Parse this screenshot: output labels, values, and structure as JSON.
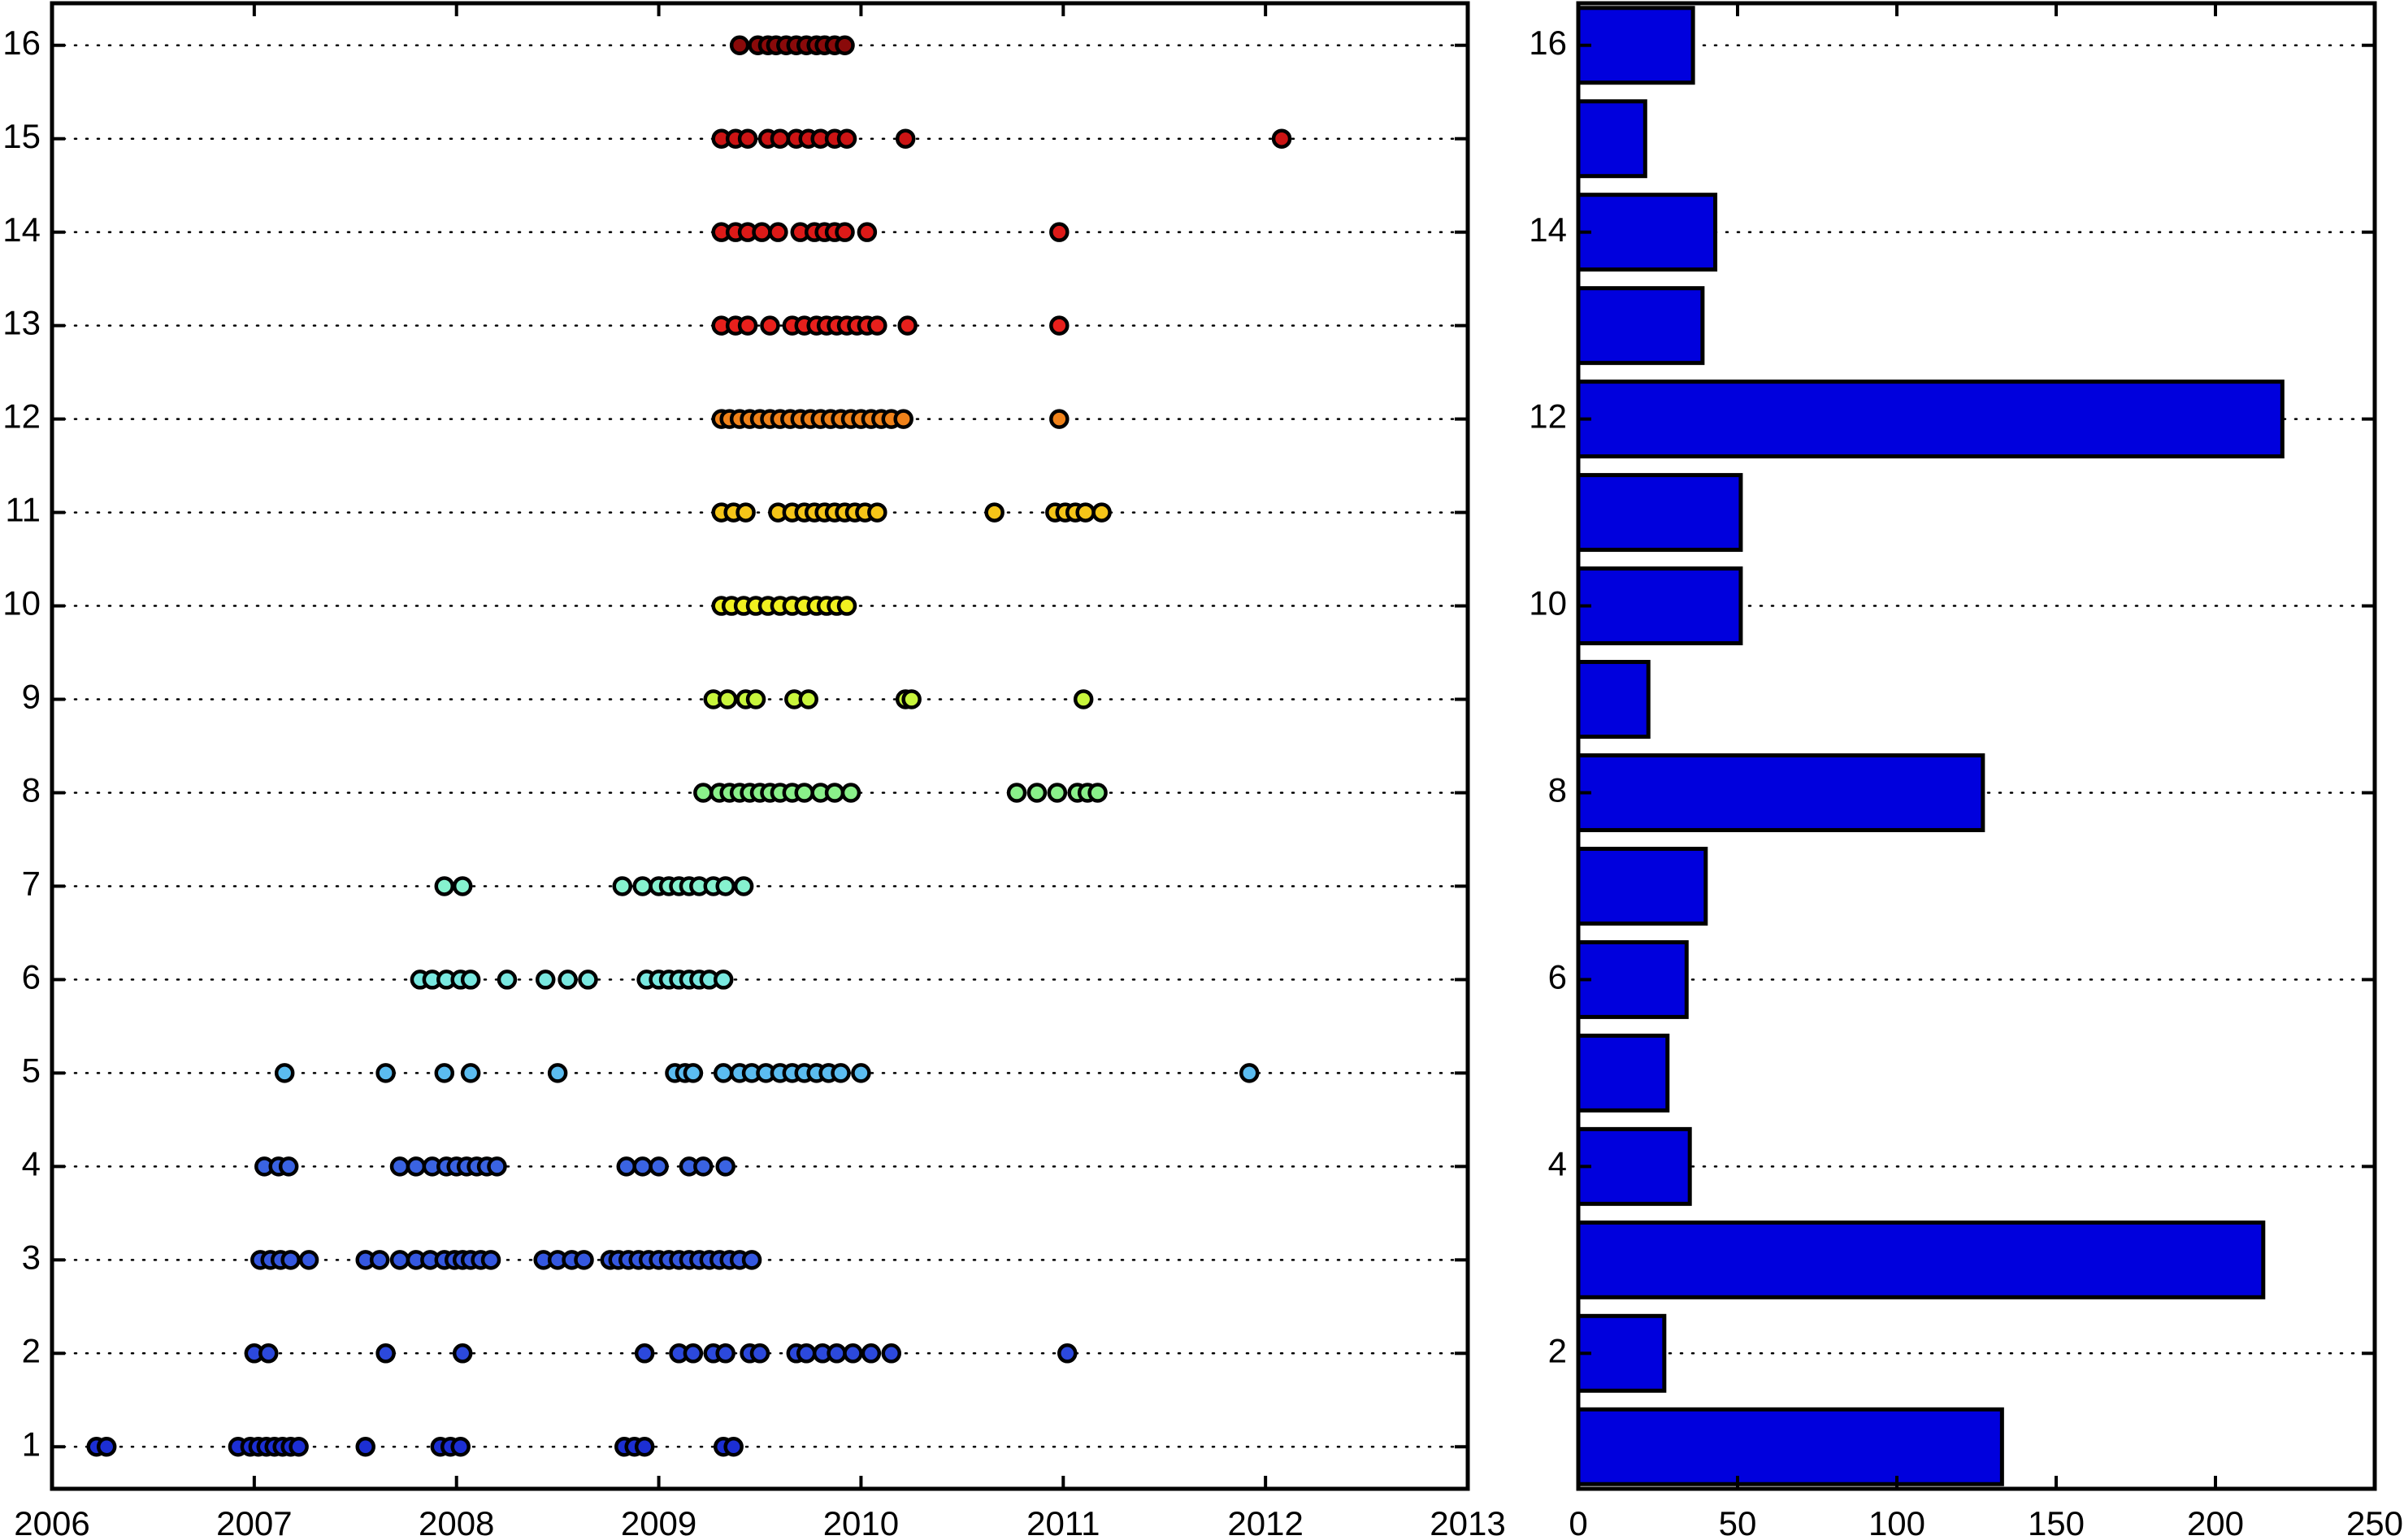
{
  "colors": {
    "bar_fill": "#0000dd",
    "edge": "#000000",
    "grid": "#000000",
    "row_colors": {
      "1": "#1c2fd4",
      "2": "#2c49dc",
      "3": "#3558e0",
      "4": "#3a63e2",
      "5": "#5bbcf0",
      "6": "#79e8e0",
      "7": "#86f2cf",
      "8": "#8af08a",
      "9": "#c8f53c",
      "10": "#f0f020",
      "11": "#f5c518",
      "12": "#f0821a",
      "13": "#e8201c",
      "14": "#dd1a18",
      "15": "#cc1414",
      "16": "#8a0a0a"
    }
  },
  "chart_data": [
    {
      "type": "scatter",
      "title": "",
      "xlabel": "",
      "ylabel": "",
      "xlim": [
        2006,
        2013
      ],
      "ylim": [
        0.55,
        16.45
      ],
      "xticks": [
        2006,
        2007,
        2008,
        2009,
        2010,
        2011,
        2012,
        2013
      ],
      "yticks": [
        1,
        2,
        3,
        4,
        5,
        6,
        7,
        8,
        9,
        10,
        11,
        12,
        13,
        14,
        15,
        16
      ],
      "grid": "horizontal dotted",
      "series": [
        {
          "row": 1,
          "x": [
            2006.22,
            2006.27,
            2006.92,
            2006.98,
            2007.02,
            2007.06,
            2007.1,
            2007.14,
            2007.18,
            2007.22,
            2007.55,
            2007.92,
            2007.97,
            2008.02,
            2008.83,
            2008.88,
            2008.93,
            2009.32,
            2009.37
          ]
        },
        {
          "row": 2,
          "x": [
            2007.0,
            2007.07,
            2007.65,
            2008.03,
            2008.93,
            2009.1,
            2009.17,
            2009.27,
            2009.33,
            2009.45,
            2009.5,
            2009.68,
            2009.73,
            2009.81,
            2009.88,
            2009.96,
            2010.05,
            2010.15,
            2011.02
          ]
        },
        {
          "row": 3,
          "x": [
            2007.03,
            2007.08,
            2007.13,
            2007.18,
            2007.27,
            2007.55,
            2007.62,
            2007.72,
            2007.8,
            2007.87,
            2007.94,
            2007.99,
            2008.03,
            2008.07,
            2008.12,
            2008.17,
            2008.43,
            2008.5,
            2008.57,
            2008.63,
            2008.76,
            2008.8,
            2008.85,
            2008.9,
            2008.95,
            2009.0,
            2009.05,
            2009.1,
            2009.15,
            2009.2,
            2009.25,
            2009.3,
            2009.35,
            2009.4,
            2009.46
          ]
        },
        {
          "row": 4,
          "x": [
            2007.05,
            2007.12,
            2007.17,
            2007.72,
            2007.8,
            2007.88,
            2007.95,
            2008.0,
            2008.05,
            2008.1,
            2008.15,
            2008.2,
            2008.84,
            2008.92,
            2009.0,
            2009.15,
            2009.22,
            2009.33
          ]
        },
        {
          "row": 5,
          "x": [
            2007.15,
            2007.65,
            2007.94,
            2008.07,
            2008.5,
            2009.08,
            2009.13,
            2009.17,
            2009.32,
            2009.4,
            2009.46,
            2009.53,
            2009.6,
            2009.66,
            2009.72,
            2009.78,
            2009.84,
            2009.9,
            2010.0,
            2011.92
          ]
        },
        {
          "row": 6,
          "x": [
            2007.82,
            2007.88,
            2007.95,
            2008.02,
            2008.07,
            2008.25,
            2008.44,
            2008.55,
            2008.65,
            2008.94,
            2009.0,
            2009.05,
            2009.1,
            2009.15,
            2009.2,
            2009.25,
            2009.32
          ]
        },
        {
          "row": 7,
          "x": [
            2007.94,
            2008.03,
            2008.82,
            2008.92,
            2009.0,
            2009.05,
            2009.1,
            2009.15,
            2009.2,
            2009.27,
            2009.33,
            2009.42
          ]
        },
        {
          "row": 8,
          "x": [
            2009.22,
            2009.3,
            2009.35,
            2009.4,
            2009.45,
            2009.5,
            2009.55,
            2009.6,
            2009.66,
            2009.72,
            2009.8,
            2009.87,
            2009.95,
            2010.77,
            2010.87,
            2010.97,
            2011.07,
            2011.12,
            2011.17
          ]
        },
        {
          "row": 9,
          "x": [
            2009.27,
            2009.34,
            2009.43,
            2009.48,
            2009.67,
            2009.74,
            2010.22,
            2010.25,
            2011.1
          ]
        },
        {
          "row": 10,
          "x": [
            2009.31,
            2009.36,
            2009.42,
            2009.48,
            2009.54,
            2009.6,
            2009.66,
            2009.72,
            2009.78,
            2009.83,
            2009.88,
            2009.93
          ]
        },
        {
          "row": 11,
          "x": [
            2009.31,
            2009.37,
            2009.43,
            2009.59,
            2009.66,
            2009.72,
            2009.77,
            2009.82,
            2009.87,
            2009.92,
            2009.97,
            2010.02,
            2010.08,
            2010.66,
            2010.96,
            2011.01,
            2011.06,
            2011.11,
            2011.19
          ]
        },
        {
          "row": 12,
          "x": [
            2009.31,
            2009.35,
            2009.4,
            2009.45,
            2009.5,
            2009.55,
            2009.6,
            2009.65,
            2009.7,
            2009.75,
            2009.8,
            2009.85,
            2009.9,
            2009.95,
            2010.0,
            2010.05,
            2010.1,
            2010.15,
            2010.21,
            2010.98
          ]
        },
        {
          "row": 13,
          "x": [
            2009.31,
            2009.38,
            2009.44,
            2009.55,
            2009.66,
            2009.72,
            2009.78,
            2009.83,
            2009.88,
            2009.93,
            2009.98,
            2010.03,
            2010.08,
            2010.23,
            2010.98
          ]
        },
        {
          "row": 14,
          "x": [
            2009.31,
            2009.38,
            2009.44,
            2009.51,
            2009.59,
            2009.7,
            2009.77,
            2009.82,
            2009.87,
            2009.92,
            2010.03,
            2010.98
          ]
        },
        {
          "row": 15,
          "x": [
            2009.31,
            2009.38,
            2009.44,
            2009.54,
            2009.6,
            2009.68,
            2009.74,
            2009.8,
            2009.87,
            2009.93,
            2010.22,
            2012.08
          ]
        },
        {
          "row": 16,
          "x": [
            2009.4,
            2009.49,
            2009.54,
            2009.58,
            2009.63,
            2009.68,
            2009.73,
            2009.78,
            2009.82,
            2009.87,
            2009.92
          ]
        }
      ]
    },
    {
      "type": "bar",
      "orientation": "horizontal",
      "title": "",
      "xlabel": "",
      "ylabel": "",
      "xlim": [
        0,
        250
      ],
      "ylim": [
        0.55,
        16.45
      ],
      "xticks": [
        0,
        50,
        100,
        150,
        200,
        250
      ],
      "yticks": [
        2,
        4,
        6,
        8,
        10,
        12,
        14,
        16
      ],
      "grid": "horizontal dotted",
      "categories": [
        1,
        2,
        3,
        4,
        5,
        6,
        7,
        8,
        9,
        10,
        11,
        12,
        13,
        14,
        15,
        16
      ],
      "values": [
        133,
        27,
        215,
        35,
        28,
        34,
        40,
        127,
        22,
        51,
        51,
        221,
        39,
        43,
        21,
        36
      ]
    }
  ]
}
